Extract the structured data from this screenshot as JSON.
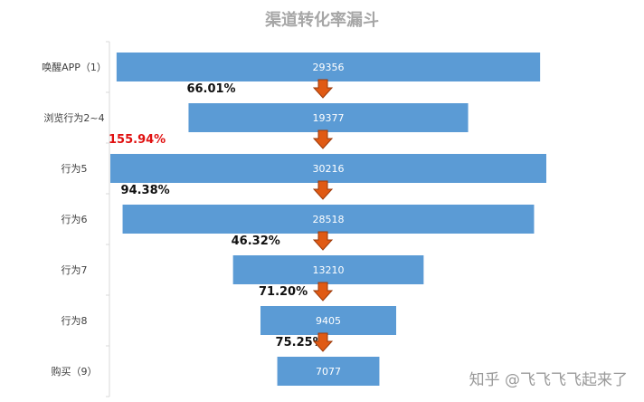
{
  "chart_data": {
    "type": "bar",
    "title": "渠道转化率漏斗",
    "categories": [
      "唤醒APP（1）",
      "浏览行为2~4",
      "行为5",
      "行为6",
      "行为7",
      "行为8",
      "购买（9）"
    ],
    "values": [
      29356,
      19377,
      30216,
      28518,
      13210,
      9405,
      7077
    ],
    "conversion_rates": [
      "66.01%",
      "155.94%",
      "94.38%",
      "46.32%",
      "71.20%",
      "75.25%"
    ],
    "highlight_rate_index": 1,
    "layout": "funnel (centered horizontal bars)",
    "xlim": [
      0,
      30216
    ],
    "grid": false,
    "legend": "none"
  },
  "colors": {
    "bar": "#5b9bd5",
    "bar_text": "#ffffff",
    "arrow_fill": "#e05a14",
    "arrow_stroke": "#9c3a0a",
    "rate_text": "#111111",
    "rate_highlight": "#e01010",
    "title": "#a6a6a6",
    "axis": "#d9d9d9"
  },
  "watermark": "知乎 @飞飞飞飞起来了"
}
